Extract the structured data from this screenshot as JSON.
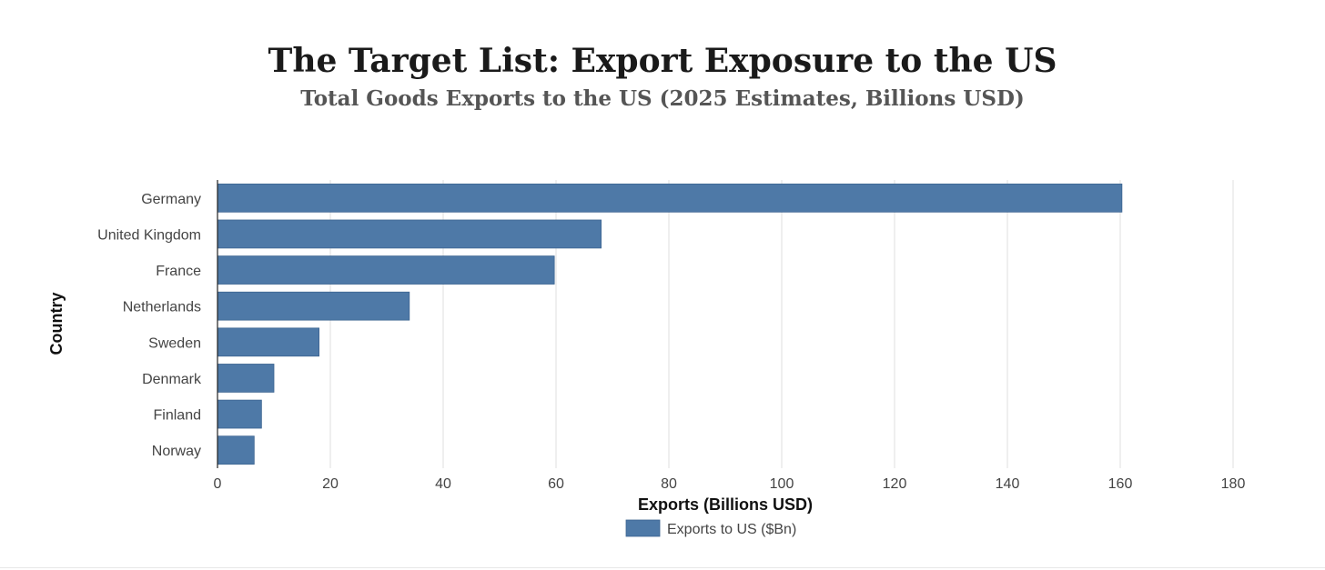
{
  "chart_data": {
    "type": "bar",
    "orientation": "horizontal",
    "title": "The Target List: Export Exposure to the US",
    "subtitle": "Total Goods Exports to the US (2025 Estimates, Billions USD)",
    "xlabel": "Exports (Billions USD)",
    "ylabel": "Country",
    "categories": [
      "Germany",
      "United Kingdom",
      "France",
      "Netherlands",
      "Sweden",
      "Denmark",
      "Finland",
      "Norway"
    ],
    "series": [
      {
        "name": "Exports to US ($Bn)",
        "color": "#4e79a7",
        "values": [
          160.3,
          68,
          59.7,
          34,
          18,
          10,
          7.8,
          6.5
        ]
      }
    ],
    "xlim": [
      0,
      180
    ],
    "xticks": [
      0,
      20,
      40,
      60,
      80,
      100,
      120,
      140,
      160,
      180
    ],
    "grid": true,
    "legend": "bottom-center"
  }
}
